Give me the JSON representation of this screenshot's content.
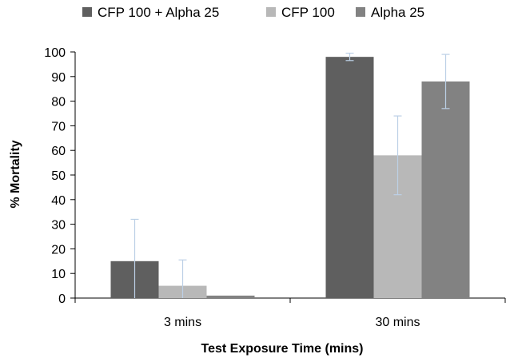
{
  "chart_data": {
    "type": "bar",
    "title": "",
    "xlabel": "Test Exposure Time (mins)",
    "ylabel": "% Mortality",
    "categories": [
      "3 mins",
      "30 mins"
    ],
    "ylim": [
      0,
      100
    ],
    "yticks": [
      0,
      10,
      20,
      30,
      40,
      50,
      60,
      70,
      80,
      90,
      100
    ],
    "ytick_labels": [
      "0",
      "10",
      "20",
      "30",
      "40",
      "50",
      "60",
      "70",
      "80",
      "90",
      "100"
    ],
    "grid": false,
    "legend_position": "top",
    "series": [
      {
        "name": "CFP 100 + Alpha 25",
        "color": "#5f5f5f",
        "values": [
          15,
          98
        ],
        "errors": [
          17,
          1.5
        ]
      },
      {
        "name": "CFP 100",
        "color": "#b8b8b8",
        "values": [
          5,
          58
        ],
        "errors": [
          10.5,
          16
        ]
      },
      {
        "name": "Alpha 25",
        "color": "#828282",
        "values": [
          1,
          88
        ],
        "errors": [
          0,
          11
        ]
      }
    ],
    "error_bar_color": "#bcd0e6"
  }
}
